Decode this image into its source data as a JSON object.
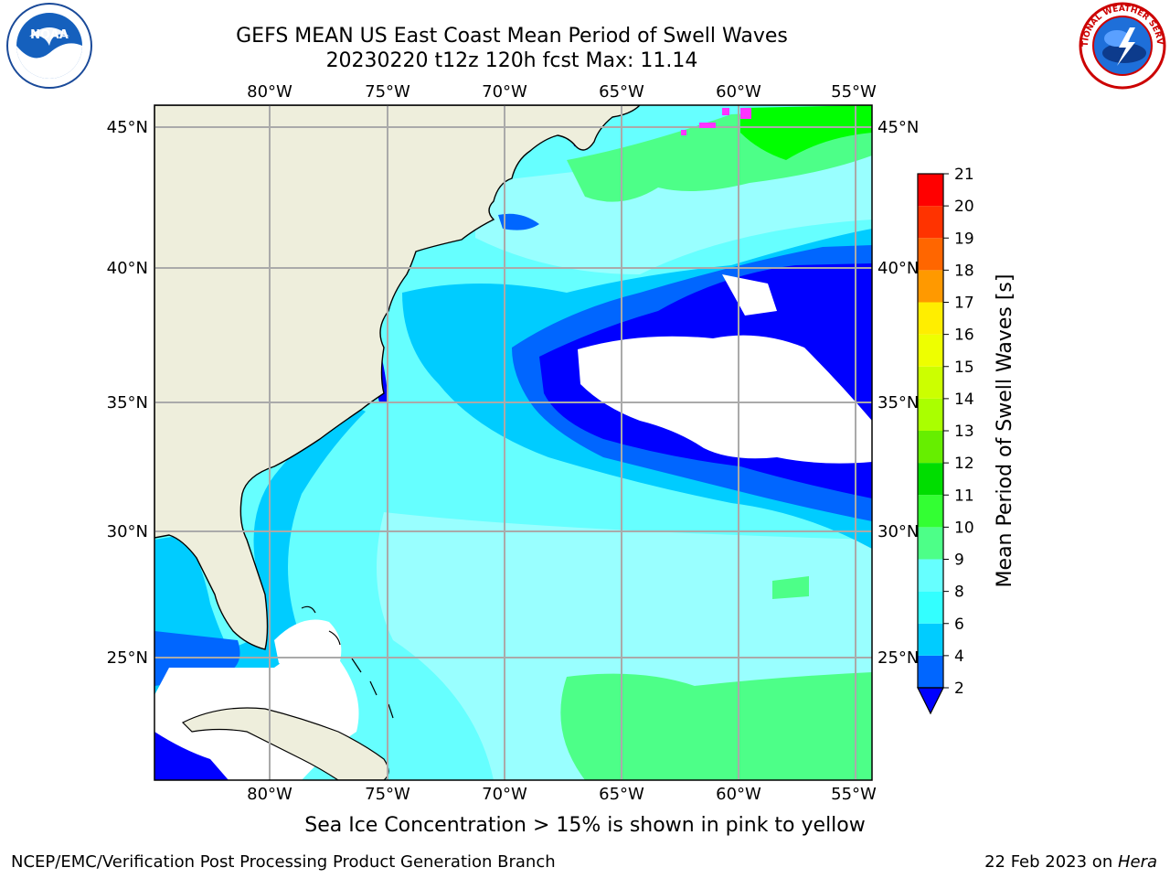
{
  "title_line1": "GEFS MEAN US East Coast Mean Period of Swell Waves",
  "title_line2": "20230220 t12z 120h fcst   Max: 11.14",
  "logos": {
    "left": "NOAA",
    "right": "NATIONAL WEATHER SERVICE"
  },
  "map": {
    "lon_labels": [
      "80°W",
      "75°W",
      "70°W",
      "65°W",
      "60°W",
      "55°W"
    ],
    "lat_labels": [
      "45°N",
      "40°N",
      "35°N",
      "30°N",
      "25°N"
    ]
  },
  "colorbar": {
    "label": "Mean Period of Swell Waves [s]",
    "ticks": [
      "2",
      "4",
      "6",
      "8",
      "9",
      "10",
      "11",
      "12",
      "13",
      "14",
      "15",
      "16",
      "17",
      "18",
      "19",
      "20",
      "21"
    ],
    "colors": [
      "#0066ff",
      "#00ccff",
      "#33ffff",
      "#66ffff",
      "#99ffff",
      "#4dff88",
      "#33ff33",
      "#00dd00",
      "#66ee00",
      "#aaff00",
      "#ccff00",
      "#eeff00",
      "#ffee00",
      "#ffcc00",
      "#ff9900",
      "#ff6600",
      "#ff3300",
      "#ff0000"
    ],
    "under_color": "#0000ff"
  },
  "footer_note": "Sea Ice Concentration > 15% is shown in pink to yellow",
  "credit_left": "NCEP/EMC/Verification Post Processing Product Generation Branch",
  "credit_date": "22 Feb 2023 on ",
  "credit_machine": "Hera"
}
